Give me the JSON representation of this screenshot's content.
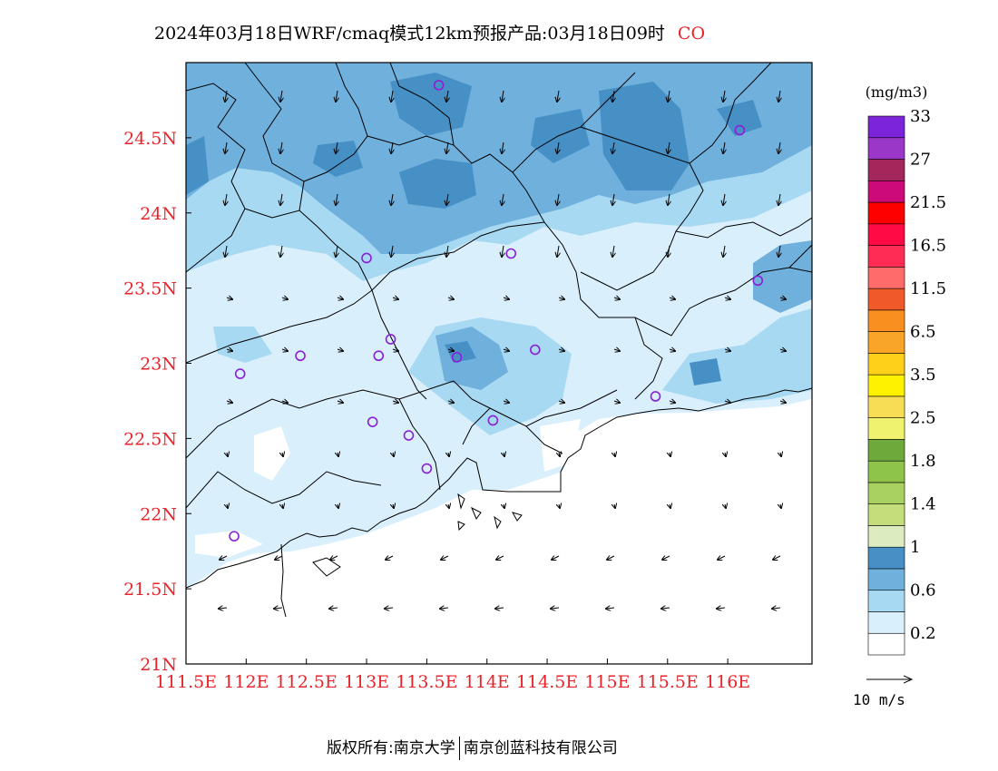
{
  "title": {
    "text": "2024年03月18日WRF/cmaq模式12km预报产品:03月18日09时",
    "species": "CO"
  },
  "map": {
    "lon_range": [
      111.5,
      116.5
    ],
    "lat_range": [
      21.0,
      25.0
    ],
    "lon_ticks": [
      {
        "v": 111.5,
        "label": "111.5E"
      },
      {
        "v": 112,
        "label": "112E"
      },
      {
        "v": 112.5,
        "label": "112.5E"
      },
      {
        "v": 113,
        "label": "113E"
      },
      {
        "v": 113.5,
        "label": "113.5E"
      },
      {
        "v": 114,
        "label": "114E"
      },
      {
        "v": 114.5,
        "label": "114.5E"
      },
      {
        "v": 115,
        "label": "115E"
      },
      {
        "v": 115.5,
        "label": "115.5E"
      },
      {
        "v": 116,
        "label": "116E"
      }
    ],
    "lat_ticks": [
      {
        "v": 21.0,
        "label": "21N"
      },
      {
        "v": 21.5,
        "label": "21.5N"
      },
      {
        "v": 22.0,
        "label": "22N"
      },
      {
        "v": 22.5,
        "label": "22.5N"
      },
      {
        "v": 23.0,
        "label": "23N"
      },
      {
        "v": 23.5,
        "label": "23.5N"
      },
      {
        "v": 24.0,
        "label": "24N"
      },
      {
        "v": 24.5,
        "label": "24.5N"
      }
    ],
    "axis_color": "#e8242a",
    "stations": [
      [
        113.6,
        24.85
      ],
      [
        116.1,
        24.55
      ],
      [
        113.0,
        23.7
      ],
      [
        114.2,
        23.73
      ],
      [
        116.25,
        23.55
      ],
      [
        113.2,
        23.16
      ],
      [
        113.1,
        23.05
      ],
      [
        112.45,
        23.05
      ],
      [
        111.95,
        22.93
      ],
      [
        113.75,
        23.04
      ],
      [
        114.4,
        23.09
      ],
      [
        115.4,
        22.78
      ],
      [
        113.05,
        22.61
      ],
      [
        113.35,
        22.52
      ],
      [
        114.05,
        22.62
      ],
      [
        113.5,
        22.3
      ],
      [
        111.9,
        21.85
      ]
    ]
  },
  "legend": {
    "unit": "(mg/m3)",
    "colors": [
      "#ffffff",
      "#d9effb",
      "#a7d9f2",
      "#6fb0dd",
      "#4690c6",
      "#dcecc0",
      "#c3de7a",
      "#a9d162",
      "#8ec449",
      "#6ea93c",
      "#eef26e",
      "#f7dc55",
      "#fff200",
      "#ffd01a",
      "#f9a628",
      "#f88f1e",
      "#f05a28",
      "#ff6a6a",
      "#ff2d55",
      "#ff0a45",
      "#ff0000",
      "#cc0a78",
      "#a3275a",
      "#9b37c8",
      "#7b24d9"
    ],
    "labels": [
      {
        "at": 1,
        "text": "0.2"
      },
      {
        "at": 3,
        "text": "0.6"
      },
      {
        "at": 5,
        "text": "1"
      },
      {
        "at": 7,
        "text": "1.4"
      },
      {
        "at": 9,
        "text": "1.8"
      },
      {
        "at": 11,
        "text": "2.5"
      },
      {
        "at": 13,
        "text": "3.5"
      },
      {
        "at": 15,
        "text": "6.5"
      },
      {
        "at": 17,
        "text": "11.5"
      },
      {
        "at": 19,
        "text": "16.5"
      },
      {
        "at": 21,
        "text": "21.5"
      },
      {
        "at": 23,
        "text": "27"
      },
      {
        "at": 25,
        "text": "33"
      }
    ]
  },
  "wind_ref": {
    "label": "10 m/s"
  },
  "footer": {
    "left": "版权所有:南京大学",
    "right": "南京创蓝科技有限公司"
  }
}
